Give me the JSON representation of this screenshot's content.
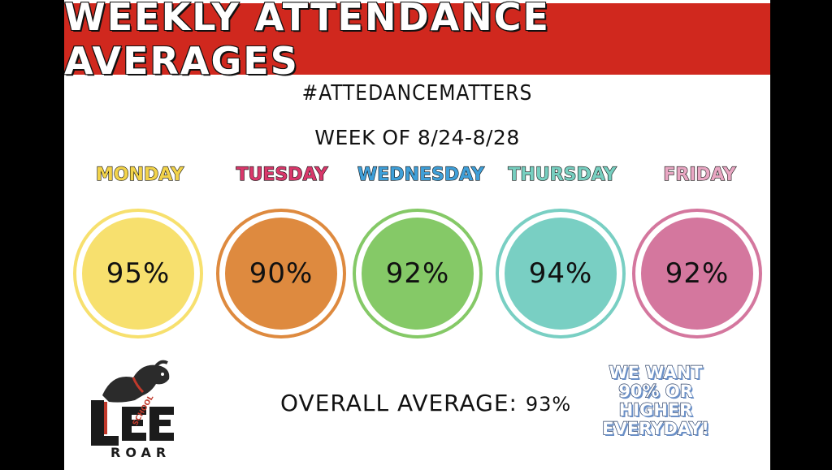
{
  "header": {
    "title": "WEEKLY ATTENDANCE AVERAGES"
  },
  "hashtag": "#ATTEDANCEMATTERS",
  "week_of": "WEEK OF 8/24-8/28",
  "days": [
    {
      "label": "MONDAY",
      "value": "95%",
      "color": "#f7e06e",
      "label_color": "#f2d34a"
    },
    {
      "label": "TUESDAY",
      "value": "90%",
      "color": "#de8a3f",
      "label_color": "#d9386b"
    },
    {
      "label": "WEDNESDAY",
      "value": "92%",
      "color": "#85c967",
      "label_color": "#3f9fd8"
    },
    {
      "label": "THURSDAY",
      "value": "94%",
      "color": "#79cfc3",
      "label_color": "#77cfc0"
    },
    {
      "label": "FRIDAY",
      "value": "92%",
      "color": "#d4779e",
      "label_color": "#e9a7c3"
    }
  ],
  "overall": {
    "label": "OVERALL AVERAGE:",
    "value": "93%"
  },
  "goal": {
    "line1": "WE WANT",
    "line2": "90% OR",
    "line3": "HIGHER",
    "line4": "EVERYDAY!"
  },
  "logo": {
    "letters": "LEE",
    "school": "SCHOOL",
    "roar": "ROAR"
  }
}
